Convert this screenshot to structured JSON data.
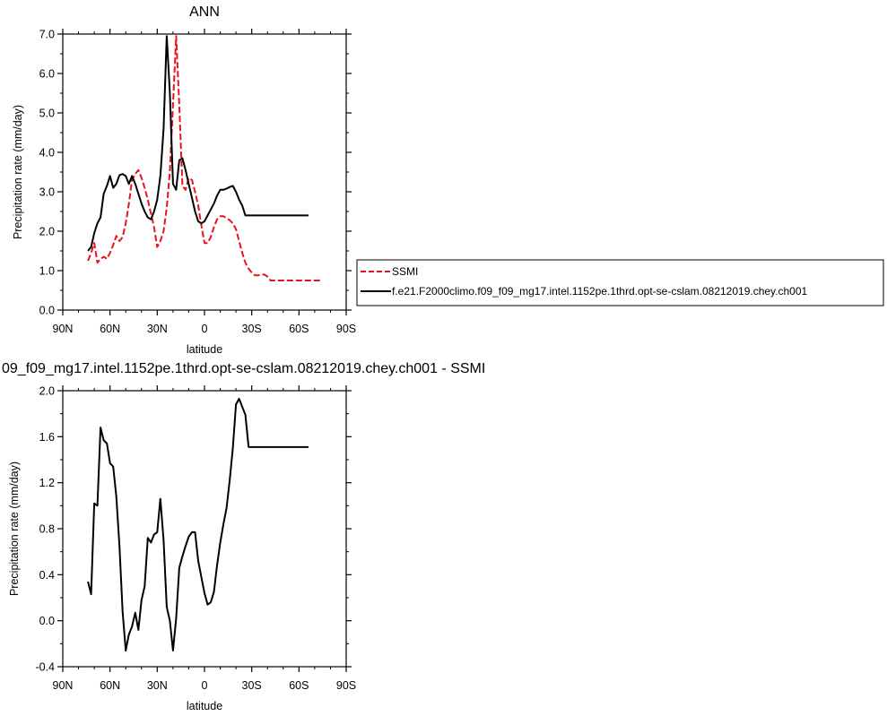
{
  "chart_data": [
    {
      "type": "line",
      "title": "ANN",
      "xlabel": "latitude",
      "ylabel": "Precipitation rate (mm/day)",
      "xlim": [
        90,
        -90
      ],
      "ylim": [
        0,
        7
      ],
      "x_ticks": [
        "90N",
        "60N",
        "30N",
        "0",
        "30S",
        "60S",
        "90S"
      ],
      "y_ticks": [
        "0.0",
        "1.0",
        "2.0",
        "3.0",
        "4.0",
        "5.0",
        "6.0",
        "7.0"
      ],
      "legend_placement": "right",
      "series": [
        {
          "name": "SSMI",
          "color": "#e8141b",
          "dash": "dashed",
          "x": [
            74,
            72,
            70,
            68,
            66,
            64,
            62,
            60,
            58,
            56,
            54,
            52,
            50,
            48,
            46,
            44,
            42,
            40,
            38,
            36,
            34,
            32,
            30,
            28,
            26,
            24,
            22,
            20,
            18,
            16,
            14,
            12,
            10,
            8,
            6,
            4,
            2,
            0,
            -2,
            -4,
            -6,
            -8,
            -10,
            -12,
            -14,
            -16,
            -18,
            -20,
            -22,
            -24,
            -26,
            -28,
            -30,
            -32,
            -34,
            -36,
            -38,
            -40,
            -42,
            -44,
            -46,
            -48,
            -50,
            -52,
            -54,
            -56,
            -58,
            -60,
            -62,
            -64,
            -66,
            -68,
            -70,
            -72,
            -74
          ],
          "values": [
            1.25,
            1.45,
            1.7,
            1.2,
            1.3,
            1.35,
            1.3,
            1.45,
            1.65,
            1.88,
            1.75,
            1.85,
            2.2,
            2.7,
            3.3,
            3.45,
            3.55,
            3.35,
            3.1,
            2.8,
            2.45,
            2.1,
            1.6,
            1.75,
            2.0,
            2.6,
            3.5,
            5.2,
            6.95,
            5.2,
            3.15,
            3.05,
            3.35,
            3.3,
            3.0,
            2.65,
            2.15,
            1.7,
            1.7,
            1.85,
            2.1,
            2.3,
            2.38,
            2.38,
            2.33,
            2.28,
            2.2,
            2.05,
            1.75,
            1.45,
            1.2,
            1.05,
            0.95,
            0.88,
            0.88,
            0.9,
            0.9,
            0.85,
            0.75,
            0.75,
            0.75,
            0.75,
            0.75,
            0.75,
            0.75,
            0.75,
            0.75,
            0.75,
            0.75,
            0.75,
            0.75,
            0.75,
            0.75,
            0.75,
            0.75
          ]
        },
        {
          "name": "f.e21.F2000climo.f09_f09_mg17.intel.1152pe.1thrd.opt-se-cslam.08212019.chey.ch001",
          "color": "#000000",
          "dash": "solid",
          "x": [
            74,
            72,
            70,
            68,
            66,
            64,
            62,
            60,
            58,
            56,
            54,
            52,
            50,
            48,
            46,
            44,
            42,
            40,
            38,
            36,
            34,
            32,
            30,
            28,
            26,
            24,
            22,
            20,
            18,
            16,
            14,
            12,
            10,
            8,
            6,
            4,
            2,
            0,
            -2,
            -4,
            -6,
            -8,
            -10,
            -12,
            -14,
            -16,
            -18,
            -20,
            -22,
            -24,
            -26,
            -28,
            -30,
            -32,
            -34,
            -36,
            -38,
            -40,
            -42,
            -44,
            -46,
            -48,
            -50,
            -52,
            -54,
            -56,
            -58,
            -60,
            -62,
            -64,
            -66
          ],
          "values": [
            1.5,
            1.6,
            1.95,
            2.2,
            2.35,
            2.95,
            3.15,
            3.4,
            3.1,
            3.2,
            3.42,
            3.45,
            3.4,
            3.2,
            3.4,
            3.2,
            2.95,
            2.7,
            2.5,
            2.35,
            2.3,
            2.5,
            2.8,
            3.4,
            4.6,
            6.95,
            5.5,
            3.2,
            3.05,
            3.8,
            3.85,
            3.55,
            3.2,
            2.85,
            2.5,
            2.25,
            2.2,
            2.25,
            2.4,
            2.55,
            2.7,
            2.9,
            3.05,
            3.05,
            3.08,
            3.12,
            3.15,
            3.0,
            2.8,
            2.65,
            2.4,
            2.4,
            2.4,
            2.4,
            2.4,
            2.4,
            2.4,
            2.4,
            2.4,
            2.4,
            2.4,
            2.4,
            2.4,
            2.4,
            2.4,
            2.4,
            2.4,
            2.4,
            2.4,
            2.4,
            2.4
          ]
        }
      ]
    },
    {
      "type": "line",
      "title": "09_f09_mg17.intel.1152pe.1thrd.opt-se-cslam.08212019.chey.ch001 - SSMI",
      "xlabel": "latitude",
      "ylabel": "Precipitation rate (mm/day)",
      "xlim": [
        90,
        -90
      ],
      "ylim": [
        -0.4,
        2.0
      ],
      "x_ticks": [
        "90N",
        "60N",
        "30N",
        "0",
        "30S",
        "60S",
        "90S"
      ],
      "y_ticks": [
        "-0.4",
        "0.0",
        "0.4",
        "0.8",
        "1.2",
        "1.6",
        "2.0"
      ],
      "series": [
        {
          "color": "#000000",
          "dash": "solid",
          "x": [
            74,
            72,
            70,
            68,
            66,
            64,
            62,
            60,
            58,
            56,
            54,
            52,
            50,
            48,
            46,
            44,
            42,
            40,
            38,
            36,
            34,
            32,
            30,
            28,
            26,
            24,
            22,
            20,
            18,
            16,
            14,
            12,
            10,
            8,
            6,
            4,
            2,
            0,
            -2,
            -4,
            -6,
            -8,
            -10,
            -12,
            -14,
            -16,
            -18,
            -20,
            -22,
            -24,
            -26,
            -28,
            -30,
            -32,
            -34,
            -36,
            -38,
            -40,
            -42,
            -44,
            -46,
            -48,
            -50,
            -52,
            -54,
            -56,
            -58,
            -60,
            -62,
            -64,
            -66
          ],
          "values": [
            0.34,
            0.23,
            1.02,
            1.0,
            1.68,
            1.57,
            1.54,
            1.37,
            1.34,
            1.08,
            0.65,
            0.08,
            -0.26,
            -0.12,
            -0.05,
            0.07,
            -0.08,
            0.18,
            0.3,
            0.72,
            0.68,
            0.75,
            0.77,
            1.06,
            0.7,
            0.12,
            0.0,
            -0.26,
            0.02,
            0.46,
            0.56,
            0.65,
            0.73,
            0.77,
            0.77,
            0.52,
            0.38,
            0.24,
            0.14,
            0.16,
            0.25,
            0.48,
            0.68,
            0.84,
            0.98,
            1.22,
            1.5,
            1.88,
            1.93,
            1.86,
            1.79,
            1.51,
            1.51,
            1.51,
            1.51,
            1.51,
            1.51,
            1.51,
            1.51,
            1.51,
            1.51,
            1.51,
            1.51,
            1.51,
            1.51,
            1.51,
            1.51,
            1.51,
            1.51,
            1.51,
            1.51
          ]
        }
      ]
    }
  ]
}
